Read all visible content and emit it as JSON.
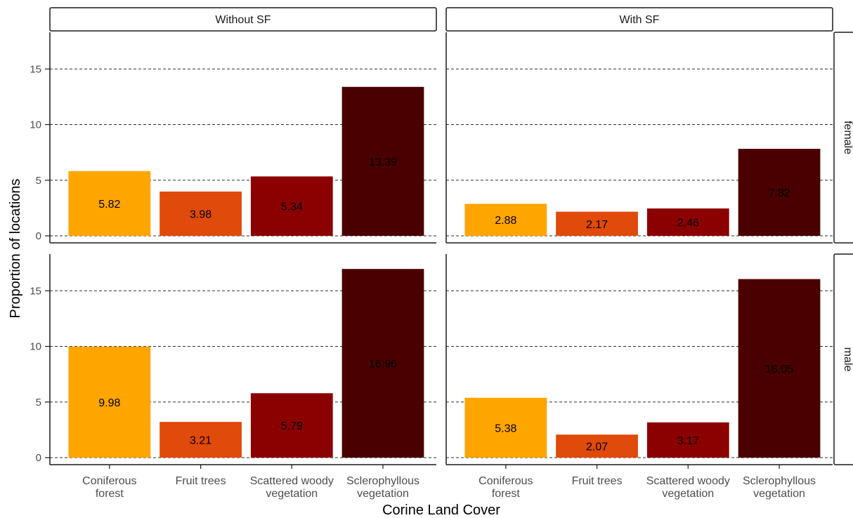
{
  "chart_data": {
    "type": "bar",
    "xlabel": "Corine Land Cover",
    "ylabel": "Proportion of locations",
    "ylim": [
      0,
      18.4
    ],
    "yticks": [
      0,
      5,
      10,
      15
    ],
    "grid": "horizontal dashed",
    "facet_columns": [
      "Without SF",
      "With SF"
    ],
    "facet_rows": [
      "female",
      "male"
    ],
    "categories": [
      [
        "Coniferous",
        "forest"
      ],
      [
        "Fruit trees"
      ],
      [
        "Scattered woody",
        "vegetation"
      ],
      [
        "Sclerophyllous",
        "vegetation"
      ]
    ],
    "colors": [
      "#FFA500",
      "#E04A0A",
      "#8B0000",
      "#4A0000"
    ],
    "panels": [
      {
        "column": "Without SF",
        "row": "female",
        "values": [
          5.82,
          3.98,
          5.34,
          13.39
        ],
        "labels": [
          "5.82",
          "3.98",
          "5.34",
          "13.39"
        ]
      },
      {
        "column": "With SF",
        "row": "female",
        "values": [
          2.88,
          2.17,
          2.46,
          7.82
        ],
        "labels": [
          "2.88",
          "2.17",
          "2.46",
          "7.82"
        ]
      },
      {
        "column": "Without SF",
        "row": "male",
        "values": [
          9.98,
          3.21,
          5.79,
          16.96
        ],
        "labels": [
          "9.98",
          "3.21",
          "5.79",
          "16.96"
        ]
      },
      {
        "column": "With SF",
        "row": "male",
        "values": [
          5.38,
          2.07,
          3.17,
          16.05
        ],
        "labels": [
          "5.38",
          "2.07",
          "3.17",
          "16.05"
        ]
      }
    ]
  }
}
